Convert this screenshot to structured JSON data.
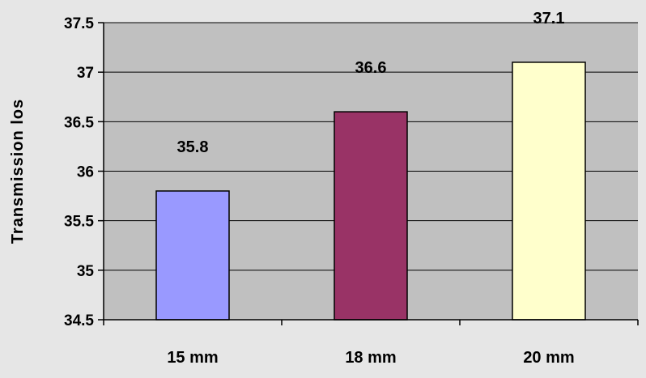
{
  "chart_data": {
    "type": "bar",
    "categories": [
      "15 mm",
      "18 mm",
      "20 mm"
    ],
    "values": [
      35.8,
      36.6,
      37.1
    ],
    "value_labels": [
      "35.8",
      "36.6",
      "37.1"
    ],
    "bar_colors": [
      "#9999ff",
      "#993366",
      "#ffffcc"
    ],
    "ylabel": "Transmission los",
    "ylim": [
      34.5,
      37.5
    ],
    "yticks": [
      34.5,
      35,
      35.5,
      36,
      36.5,
      37,
      37.5
    ],
    "ytick_labels": [
      "34.5",
      "35",
      "35.5",
      "36",
      "36.5",
      "37",
      "37.5"
    ],
    "grid": true,
    "plot_background": "#c0c0c0",
    "page_background": "#e6e6e6"
  }
}
